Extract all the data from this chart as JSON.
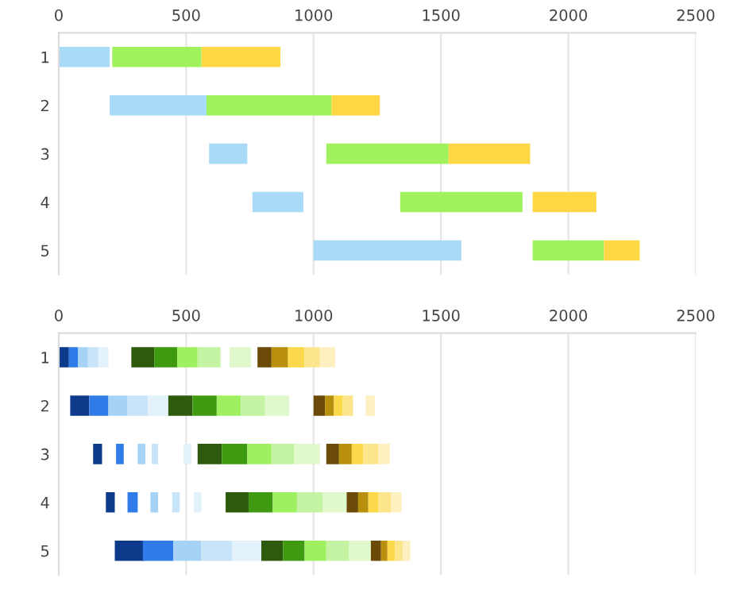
{
  "chart_data": [
    {
      "type": "bar",
      "orientation": "horizontal",
      "categories": [
        "1",
        "2",
        "3",
        "4",
        "5"
      ],
      "xlim": [
        0,
        2500
      ],
      "xticks": [
        0,
        500,
        1000,
        1500,
        2000,
        2500
      ],
      "grid": "x",
      "legend": false,
      "series": [
        {
          "color": "#a9daf7",
          "base": [
            0,
            200,
            590,
            760,
            1000
          ],
          "values": [
            200,
            380,
            150,
            200,
            580
          ]
        },
        {
          "color": "#9ff25e",
          "base": [
            210,
            580,
            1050,
            1340,
            1860
          ],
          "values": [
            350,
            490,
            480,
            480,
            280
          ]
        },
        {
          "color": "#fdd744",
          "base": [
            560,
            1070,
            1530,
            1860,
            2140
          ],
          "values": [
            310,
            190,
            320,
            250,
            140
          ]
        }
      ]
    },
    {
      "type": "bar",
      "orientation": "horizontal",
      "categories": [
        "1",
        "2",
        "3",
        "4",
        "5"
      ],
      "xlim": [
        0,
        2500
      ],
      "xticks": [
        0,
        500,
        1000,
        1500,
        2000,
        2500
      ],
      "grid": "x",
      "legend": false,
      "series": [
        {
          "color": "#0d3a8a",
          "base": [
            0,
            45,
            135,
            185,
            220
          ],
          "values": [
            40,
            75,
            35,
            35,
            115
          ]
        },
        {
          "color": "#2f7ce8",
          "base": [
            40,
            120,
            225,
            270,
            330
          ],
          "values": [
            35,
            75,
            30,
            40,
            120
          ]
        },
        {
          "color": "#a6d3f5",
          "base": [
            75,
            195,
            310,
            360,
            450
          ],
          "values": [
            40,
            75,
            30,
            30,
            110
          ]
        },
        {
          "color": "#c7e4f9",
          "base": [
            115,
            270,
            365,
            445,
            560
          ],
          "values": [
            40,
            80,
            25,
            30,
            120
          ]
        },
        {
          "color": "#e3f1fb",
          "base": [
            155,
            350,
            490,
            530,
            680
          ],
          "values": [
            40,
            80,
            30,
            30,
            115
          ]
        },
        {
          "color": "#2d5a0c",
          "base": [
            285,
            430,
            545,
            655,
            795
          ],
          "values": [
            90,
            95,
            95,
            90,
            85
          ]
        },
        {
          "color": "#3f9a12",
          "base": [
            375,
            525,
            640,
            745,
            880
          ],
          "values": [
            90,
            95,
            100,
            95,
            85
          ]
        },
        {
          "color": "#9ef060",
          "base": [
            465,
            620,
            740,
            840,
            965
          ],
          "values": [
            80,
            95,
            95,
            95,
            85
          ]
        },
        {
          "color": "#c4f3a4",
          "base": [
            545,
            715,
            835,
            935,
            1050
          ],
          "values": [
            90,
            95,
            90,
            100,
            90
          ]
        },
        {
          "color": "#e0f8cc",
          "base": [
            670,
            810,
            925,
            1035,
            1140
          ],
          "values": [
            85,
            95,
            100,
            95,
            85
          ]
        },
        {
          "color": "#6b4a08",
          "base": [
            780,
            1000,
            1050,
            1130,
            1225
          ],
          "values": [
            55,
            45,
            50,
            45,
            40
          ]
        },
        {
          "color": "#b8900d",
          "base": [
            835,
            1045,
            1100,
            1175,
            1265
          ],
          "values": [
            65,
            35,
            50,
            40,
            25
          ]
        },
        {
          "color": "#fcd94a",
          "base": [
            900,
            1080,
            1150,
            1215,
            1290
          ],
          "values": [
            65,
            35,
            45,
            40,
            30
          ]
        },
        {
          "color": "#fde58c",
          "base": [
            965,
            1115,
            1195,
            1255,
            1320
          ],
          "values": [
            60,
            40,
            60,
            50,
            30
          ]
        },
        {
          "color": "#fef0c0",
          "base": [
            1025,
            1205,
            1255,
            1305,
            1350
          ],
          "values": [
            60,
            35,
            45,
            40,
            30
          ]
        }
      ]
    }
  ]
}
